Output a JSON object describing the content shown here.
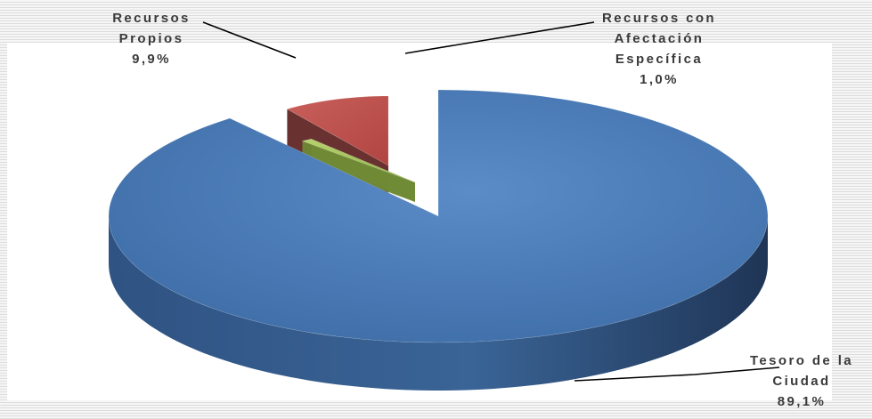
{
  "chart_data": {
    "type": "pie",
    "style": "3d-exploded",
    "slices": [
      {
        "name": "Tesoro de la Ciudad",
        "value": 89.1,
        "label_lines": [
          "Tesoro de la",
          "Ciudad",
          "89,1%"
        ],
        "color": "#4f81bd"
      },
      {
        "name": "Recursos con Afectación Específica",
        "value": 1.0,
        "label_lines": [
          "Recursos con",
          "Afectación",
          "Específica",
          "1,0%"
        ],
        "color": "#9bbb59"
      },
      {
        "name": "Recursos Propios",
        "value": 9.9,
        "label_lines": [
          "Recursos",
          "Propios",
          "9,9%"
        ],
        "color": "#c0504d"
      }
    ]
  }
}
